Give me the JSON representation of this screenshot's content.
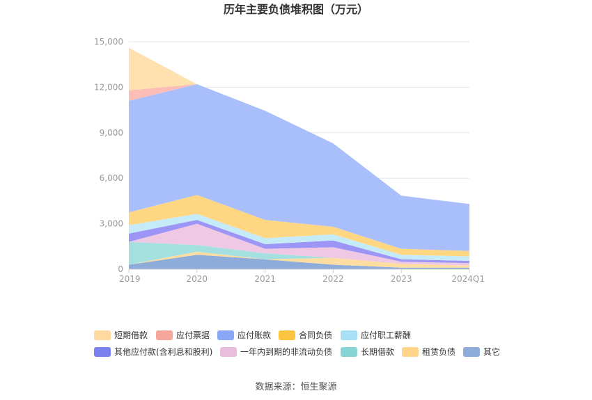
{
  "source_prefix": "数据来源：",
  "source_name": "恒生聚源",
  "chart_data": {
    "type": "area",
    "stacked": true,
    "title": "历年主要负债堆积图（万元）",
    "categories": [
      "2019",
      "2020",
      "2021",
      "2022",
      "2023",
      "2024Q1"
    ],
    "ylim": [
      0,
      15000
    ],
    "yticks": [
      0,
      3000,
      6000,
      9000,
      12000,
      15000
    ],
    "ytick_labels": [
      "0",
      "3,000",
      "6,000",
      "9,000",
      "12,000",
      "15,000"
    ],
    "grid": true,
    "legend_position": "bottom",
    "series": [
      {
        "name": "其它",
        "color": "#8EACD9",
        "values": [
          300,
          950,
          650,
          300,
          100,
          100
        ]
      },
      {
        "name": "租赁负债",
        "color": "#FFDDA0",
        "values": [
          0,
          200,
          0,
          450,
          250,
          150
        ]
      },
      {
        "name": "长期借款",
        "color": "#A5E0E0",
        "values": [
          1500,
          450,
          400,
          0,
          0,
          0
        ]
      },
      {
        "name": "一年内到期的非流动负债",
        "color": "#EFC8E3",
        "values": [
          0,
          1400,
          300,
          700,
          150,
          150
        ]
      },
      {
        "name": "其他应付款(含利息和股利)",
        "color": "#9C95F5",
        "values": [
          550,
          250,
          300,
          450,
          150,
          150
        ]
      },
      {
        "name": "应付职工薪酬",
        "color": "#C5EBF8",
        "values": [
          550,
          400,
          400,
          400,
          300,
          300
        ]
      },
      {
        "name": "合同负债",
        "color": "#FFD783",
        "values": [
          850,
          1250,
          1200,
          500,
          400,
          350
        ]
      },
      {
        "name": "应付账款",
        "color": "#A9BFFC",
        "values": [
          7350,
          7300,
          7200,
          5500,
          3500,
          3100
        ]
      },
      {
        "name": "应付票据",
        "color": "#FBBDB5",
        "values": [
          700,
          0,
          0,
          0,
          0,
          0
        ]
      },
      {
        "name": "短期借款",
        "color": "#FFE1B0",
        "values": [
          2800,
          0,
          0,
          0,
          0,
          0
        ]
      }
    ],
    "legend": [
      {
        "name": "短期借款",
        "color": "#FFD9A0"
      },
      {
        "name": "应付票据",
        "color": "#F7A69C"
      },
      {
        "name": "应付账款",
        "color": "#8AA6F6"
      },
      {
        "name": "合同负债",
        "color": "#FDC441"
      },
      {
        "name": "应付职工薪酬",
        "color": "#A8E0F6"
      },
      {
        "name": "其他应付款(含利息和股利)",
        "color": "#7A80F0"
      },
      {
        "name": "一年内到期的非流动负债",
        "color": "#E9BEDC"
      },
      {
        "name": "长期借款",
        "color": "#86D6D6"
      },
      {
        "name": "租赁负债",
        "color": "#FFD58A"
      },
      {
        "name": "其它",
        "color": "#8EACD9"
      }
    ]
  }
}
